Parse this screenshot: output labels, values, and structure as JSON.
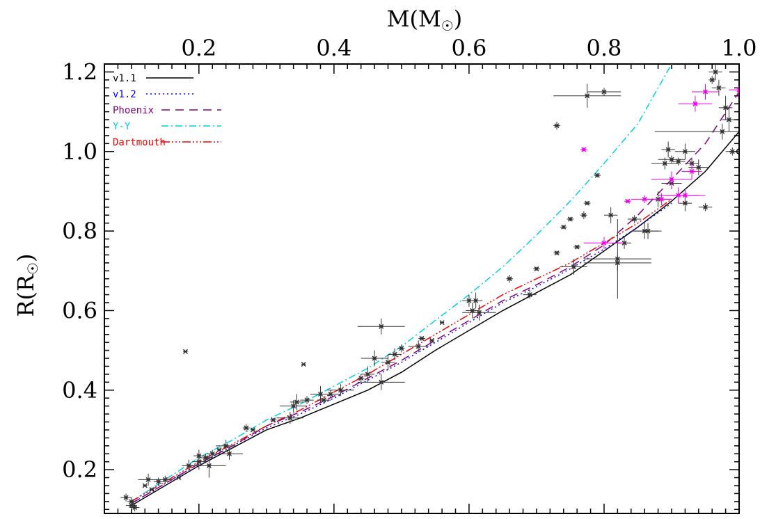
{
  "chart_data": {
    "type": "scatter",
    "xlabel": "M(M",
    "ylabel": "R(R",
    "xlim": [
      0.06,
      1.0
    ],
    "ylim": [
      0.09,
      1.22
    ],
    "x_ticks": [
      0.2,
      0.4,
      0.6,
      0.8,
      1.0
    ],
    "x_tick_labels": [
      "0.2",
      "0.4",
      "0.6",
      "0.8",
      "1.0"
    ],
    "y_ticks": [
      0.2,
      0.4,
      0.6,
      0.8,
      1.0,
      1.2
    ],
    "y_tick_labels": [
      "0.2",
      "0.4",
      "0.6",
      "0.8",
      "1.0",
      "1.2"
    ],
    "grid": false,
    "legend_position": "top-left",
    "series": [
      {
        "name": "v1.1",
        "color": "#000000",
        "dash": "",
        "x": [
          0.1,
          0.15,
          0.2,
          0.25,
          0.3,
          0.35,
          0.4,
          0.45,
          0.5,
          0.55,
          0.6,
          0.65,
          0.7,
          0.75,
          0.8,
          0.85,
          0.9,
          0.95,
          1.0
        ],
        "y": [
          0.11,
          0.16,
          0.21,
          0.255,
          0.3,
          0.33,
          0.365,
          0.4,
          0.445,
          0.5,
          0.55,
          0.6,
          0.645,
          0.69,
          0.75,
          0.81,
          0.875,
          0.95,
          1.05
        ]
      },
      {
        "name": "v1.2",
        "color": "#0000ee",
        "dash": "2,4",
        "x": [
          0.1,
          0.15,
          0.2,
          0.25,
          0.3,
          0.35,
          0.4,
          0.45,
          0.5,
          0.55,
          0.6,
          0.65,
          0.7,
          0.75,
          0.8,
          0.85,
          0.9
        ],
        "y": [
          0.115,
          0.165,
          0.215,
          0.26,
          0.305,
          0.34,
          0.38,
          0.425,
          0.47,
          0.52,
          0.57,
          0.62,
          0.66,
          0.705,
          0.755,
          0.81,
          0.87
        ]
      },
      {
        "name": "Phoenix",
        "color": "#800080",
        "dash": "12,8",
        "x": [
          0.1,
          0.15,
          0.2,
          0.25,
          0.3,
          0.35,
          0.4,
          0.45,
          0.5,
          0.55,
          0.6,
          0.65,
          0.7,
          0.75,
          0.8,
          0.85,
          0.9,
          0.95,
          1.0
        ],
        "y": [
          0.115,
          0.165,
          0.215,
          0.26,
          0.31,
          0.345,
          0.385,
          0.43,
          0.475,
          0.525,
          0.575,
          0.625,
          0.665,
          0.71,
          0.765,
          0.84,
          0.93,
          1.02,
          1.15
        ]
      },
      {
        "name": "Y-Y",
        "color": "#00d0e0",
        "dash": "10,4,2,4",
        "x": [
          0.1,
          0.15,
          0.2,
          0.25,
          0.3,
          0.35,
          0.4,
          0.45,
          0.5,
          0.55,
          0.6,
          0.65,
          0.7,
          0.75,
          0.8,
          0.85,
          0.9
        ],
        "y": [
          0.12,
          0.175,
          0.23,
          0.275,
          0.325,
          0.365,
          0.41,
          0.455,
          0.51,
          0.575,
          0.64,
          0.71,
          0.79,
          0.875,
          0.97,
          1.07,
          1.22
        ]
      },
      {
        "name": "Dartmouth",
        "color": "#ee0000",
        "dash": "12,3,2,3,2,3,2,3",
        "x": [
          0.1,
          0.15,
          0.2,
          0.25,
          0.3,
          0.35,
          0.4,
          0.45,
          0.5,
          0.55,
          0.6,
          0.65,
          0.7,
          0.75,
          0.8,
          0.85,
          0.9
        ],
        "y": [
          0.12,
          0.17,
          0.22,
          0.265,
          0.31,
          0.35,
          0.395,
          0.44,
          0.49,
          0.54,
          0.59,
          0.64,
          0.68,
          0.72,
          0.77,
          0.82,
          0.88
        ]
      }
    ],
    "observations_black": {
      "color": "#333333",
      "points": [
        [
          0.092,
          0.13,
          0.008,
          0.01
        ],
        [
          0.1,
          0.12,
          0.006,
          0.01
        ],
        [
          0.1,
          0.11,
          0.008,
          0.01
        ],
        [
          0.105,
          0.105,
          0.007,
          0.01
        ],
        [
          0.125,
          0.175,
          0.015,
          0.015
        ],
        [
          0.12,
          0.16,
          0,
          0
        ],
        [
          0.13,
          0.15,
          0,
          0
        ],
        [
          0.14,
          0.17,
          0.007,
          0.01
        ],
        [
          0.15,
          0.175,
          0.01,
          0.01
        ],
        [
          0.18,
          0.497,
          0,
          0
        ],
        [
          0.17,
          0.18,
          0,
          0
        ],
        [
          0.185,
          0.21,
          0.01,
          0.015
        ],
        [
          0.2,
          0.22,
          0.01,
          0.02
        ],
        [
          0.2,
          0.235,
          0.008,
          0.015
        ],
        [
          0.21,
          0.23,
          0.01,
          0.01
        ],
        [
          0.215,
          0.21,
          0.025,
          0.03
        ],
        [
          0.22,
          0.24,
          0.008,
          0.01
        ],
        [
          0.24,
          0.26,
          0.015,
          0.015
        ],
        [
          0.245,
          0.24,
          0.02,
          0.015
        ],
        [
          0.23,
          0.25,
          0,
          0
        ],
        [
          0.27,
          0.305,
          0.005,
          0.01
        ],
        [
          0.28,
          0.3,
          0,
          0
        ],
        [
          0.31,
          0.325,
          0.005,
          0.005
        ],
        [
          0.335,
          0.33,
          0.02,
          0.015
        ],
        [
          0.34,
          0.36,
          0.02,
          0.015
        ],
        [
          0.345,
          0.37,
          0.01,
          0.02
        ],
        [
          0.355,
          0.465,
          0,
          0
        ],
        [
          0.36,
          0.375,
          0.01,
          0.01
        ],
        [
          0.38,
          0.39,
          0.015,
          0.02
        ],
        [
          0.385,
          0.375,
          0.01,
          0.01
        ],
        [
          0.395,
          0.39,
          0.015,
          0.01
        ],
        [
          0.41,
          0.4,
          0.02,
          0.015
        ],
        [
          0.44,
          0.43,
          0.005,
          0.01
        ],
        [
          0.45,
          0.44,
          0.01,
          0.02
        ],
        [
          0.46,
          0.48,
          0.02,
          0.02
        ],
        [
          0.47,
          0.56,
          0.035,
          0.02
        ],
        [
          0.47,
          0.42,
          0.035,
          0.02
        ],
        [
          0.48,
          0.47,
          0.01,
          0.02
        ],
        [
          0.49,
          0.49,
          0.01,
          0.015
        ],
        [
          0.5,
          0.505,
          0.005,
          0.01
        ],
        [
          0.525,
          0.51,
          0.015,
          0.015
        ],
        [
          0.53,
          0.53,
          0.005,
          0.005
        ],
        [
          0.545,
          0.525,
          0,
          0
        ],
        [
          0.56,
          0.57,
          0,
          0
        ],
        [
          0.6,
          0.625,
          0.01,
          0.015
        ],
        [
          0.605,
          0.6,
          0.01,
          0.02
        ],
        [
          0.61,
          0.625,
          0.01,
          0.02
        ],
        [
          0.615,
          0.595,
          0.025,
          0.02
        ],
        [
          0.66,
          0.68,
          0.005,
          0.01
        ],
        [
          0.69,
          0.64,
          0.01,
          0.01
        ],
        [
          0.7,
          0.705,
          0.005,
          0.005
        ],
        [
          0.73,
          0.745,
          0.005,
          0.005
        ],
        [
          0.73,
          1.065,
          0.005,
          0.01
        ],
        [
          0.74,
          0.81,
          0.005,
          0.005
        ],
        [
          0.75,
          0.83,
          0.005,
          0.005
        ],
        [
          0.755,
          0.71,
          0.02,
          0.02
        ],
        [
          0.76,
          0.76,
          0.005,
          0.005
        ],
        [
          0.77,
          0.84,
          0.005,
          0.01
        ],
        [
          0.775,
          0.87,
          0.005,
          0.005
        ],
        [
          0.775,
          1.14,
          0.05,
          0.03
        ],
        [
          0.8,
          1.15,
          0.025,
          0.01
        ],
        [
          0.79,
          0.94,
          0.005,
          0.005
        ],
        [
          0.81,
          0.84,
          0.01,
          0.02
        ],
        [
          0.82,
          0.72,
          0.05,
          0.02
        ],
        [
          0.82,
          0.73,
          0.05,
          0.1
        ],
        [
          0.83,
          0.77,
          0.01,
          0.015
        ],
        [
          0.845,
          0.83,
          0.01,
          0.01
        ],
        [
          0.86,
          0.8,
          0.02,
          0.02
        ],
        [
          0.865,
          0.8,
          0.02,
          0.02
        ],
        [
          0.88,
          0.88,
          0.02,
          0.02
        ],
        [
          0.89,
          0.97,
          0.02,
          0.015
        ],
        [
          0.9,
          0.92,
          0.015,
          0.015
        ],
        [
          0.91,
          0.975,
          0.01,
          0.01
        ],
        [
          0.92,
          0.87,
          0.01,
          0.02
        ],
        [
          0.93,
          0.97,
          0.01,
          0.015
        ],
        [
          0.94,
          0.96,
          0.015,
          0.02
        ],
        [
          0.95,
          0.86,
          0.01,
          0.01
        ],
        [
          0.96,
          1.18,
          0.005,
          0.01
        ],
        [
          0.965,
          1.2,
          0.01,
          0.02
        ],
        [
          0.97,
          1.16,
          0.01,
          0.02
        ],
        [
          0.975,
          1.05,
          0.1,
          0.02
        ],
        [
          0.98,
          1.11,
          0.01,
          0.03
        ],
        [
          0.985,
          1.08,
          0.01,
          0.03
        ],
        [
          0.99,
          1.0,
          0.01,
          0.01
        ],
        [
          0.92,
          1.0,
          0.015,
          0.02
        ],
        [
          0.895,
          1.005,
          0.01,
          0.02
        ],
        [
          0.9,
          0.98,
          0.02,
          0.01
        ]
      ]
    },
    "observations_magenta": {
      "color": "#ee00ee",
      "points": [
        [
          0.77,
          1.005,
          0.005,
          0.005
        ],
        [
          0.8,
          0.77,
          0.03,
          0.015
        ],
        [
          0.835,
          0.875,
          0.005,
          0.005
        ],
        [
          0.86,
          0.88,
          0.02,
          0.01
        ],
        [
          0.885,
          0.88,
          0.015,
          0.015
        ],
        [
          0.9,
          0.93,
          0.03,
          0.02
        ],
        [
          0.91,
          0.89,
          0.03,
          0.02
        ],
        [
          0.92,
          0.89,
          0.03,
          0.015
        ],
        [
          0.93,
          0.95,
          0.015,
          0.02
        ],
        [
          0.935,
          1.12,
          0.025,
          0.02
        ],
        [
          0.95,
          1.15,
          0.02,
          0.02
        ],
        [
          1.0,
          1.155,
          0.015,
          0.01
        ]
      ]
    },
    "sun_point": {
      "x": 1.0,
      "y": 1.0
    }
  }
}
